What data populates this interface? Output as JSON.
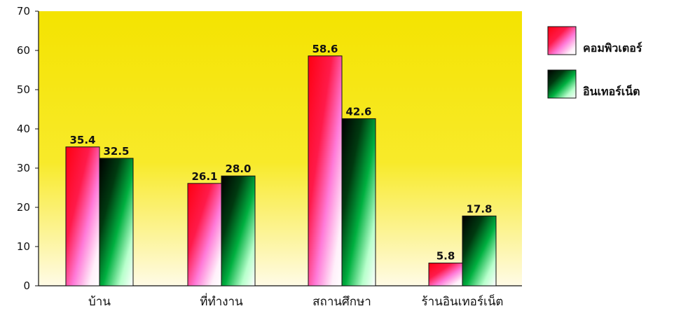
{
  "chart_data": {
    "type": "bar",
    "categories": [
      "บ้าน",
      "ที่ทำงาน",
      "สถานศึกษา",
      "ร้านอินเทอร์เน็ต"
    ],
    "series": [
      {
        "name": "คอมพิวเตอร์",
        "values": [
          35.4,
          26.1,
          58.6,
          5.8
        ],
        "value_labels": [
          "35.4",
          "26.1",
          "58.6",
          "5.8"
        ],
        "color": "#ff0000"
      },
      {
        "name": "อินเทอร์เน็ต",
        "values": [
          32.5,
          28.0,
          42.6,
          17.8
        ],
        "value_labels": [
          "32.5",
          "28.0",
          "42.6",
          "17.8"
        ],
        "color": "#00a040"
      }
    ],
    "ylim": [
      0,
      70
    ],
    "yticks": [
      0,
      10,
      20,
      30,
      40,
      50,
      60,
      70
    ],
    "grid": false,
    "legend_position": "right",
    "plot_background": "#f7e400",
    "title": "",
    "xlabel": "",
    "ylabel": ""
  }
}
